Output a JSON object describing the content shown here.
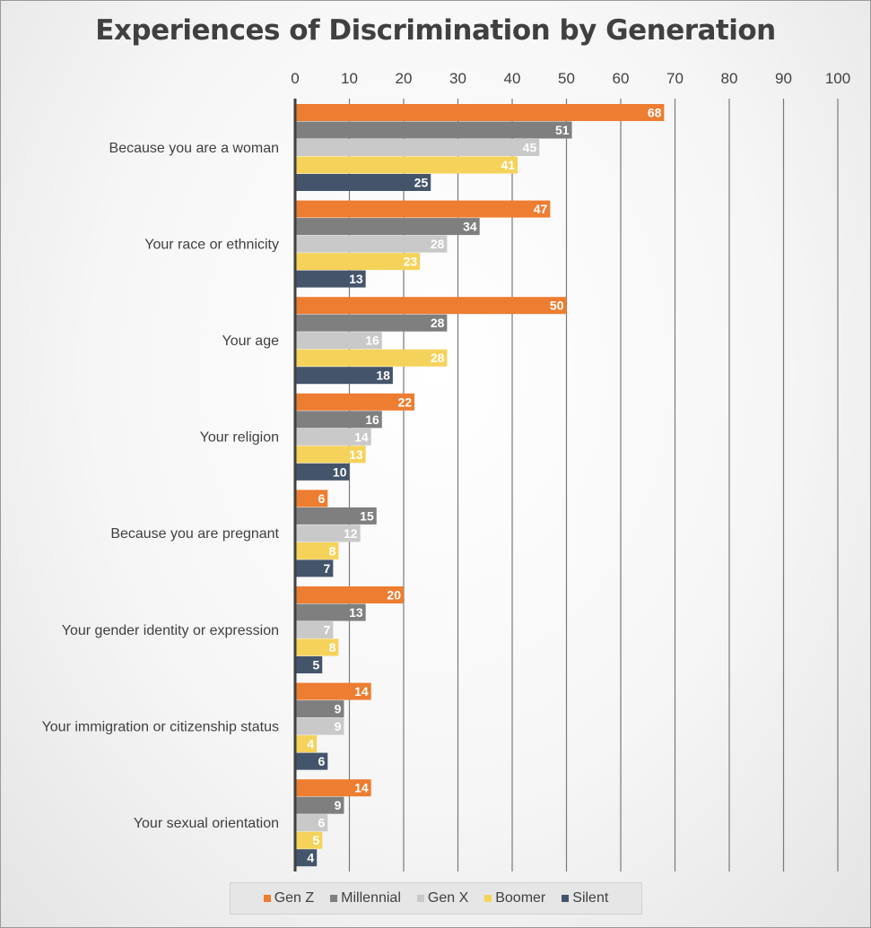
{
  "chart_data": {
    "type": "bar",
    "orientation": "horizontal",
    "title": "Experiences of Discrimination by Generation",
    "xlim": [
      0,
      100
    ],
    "x_ticks": [
      0,
      10,
      20,
      30,
      40,
      50,
      60,
      70,
      80,
      90,
      100
    ],
    "x_axis_position": "top",
    "grid": true,
    "legend_position": "bottom",
    "categories": [
      "Because you are a woman",
      "Your race or ethnicity",
      "Your age",
      "Your religion",
      "Because you are pregnant",
      "Your gender identity or expression",
      "Your immigration or citizenship status",
      "Your sexual orientation"
    ],
    "series": [
      {
        "name": "Gen Z",
        "color": "#ED7D31",
        "values": [
          68,
          47,
          50,
          22,
          6,
          20,
          14,
          14
        ]
      },
      {
        "name": "Millennial",
        "color": "#7F7F7F",
        "values": [
          51,
          34,
          28,
          16,
          15,
          13,
          9,
          9
        ]
      },
      {
        "name": "Gen X",
        "color": "#C9C9C9",
        "values": [
          45,
          28,
          16,
          14,
          12,
          7,
          9,
          6
        ]
      },
      {
        "name": "Boomer",
        "color": "#F5D25A",
        "values": [
          41,
          23,
          28,
          13,
          8,
          8,
          4,
          5
        ]
      },
      {
        "name": "Silent",
        "color": "#44546A",
        "values": [
          25,
          13,
          18,
          10,
          7,
          5,
          6,
          4
        ]
      }
    ]
  }
}
